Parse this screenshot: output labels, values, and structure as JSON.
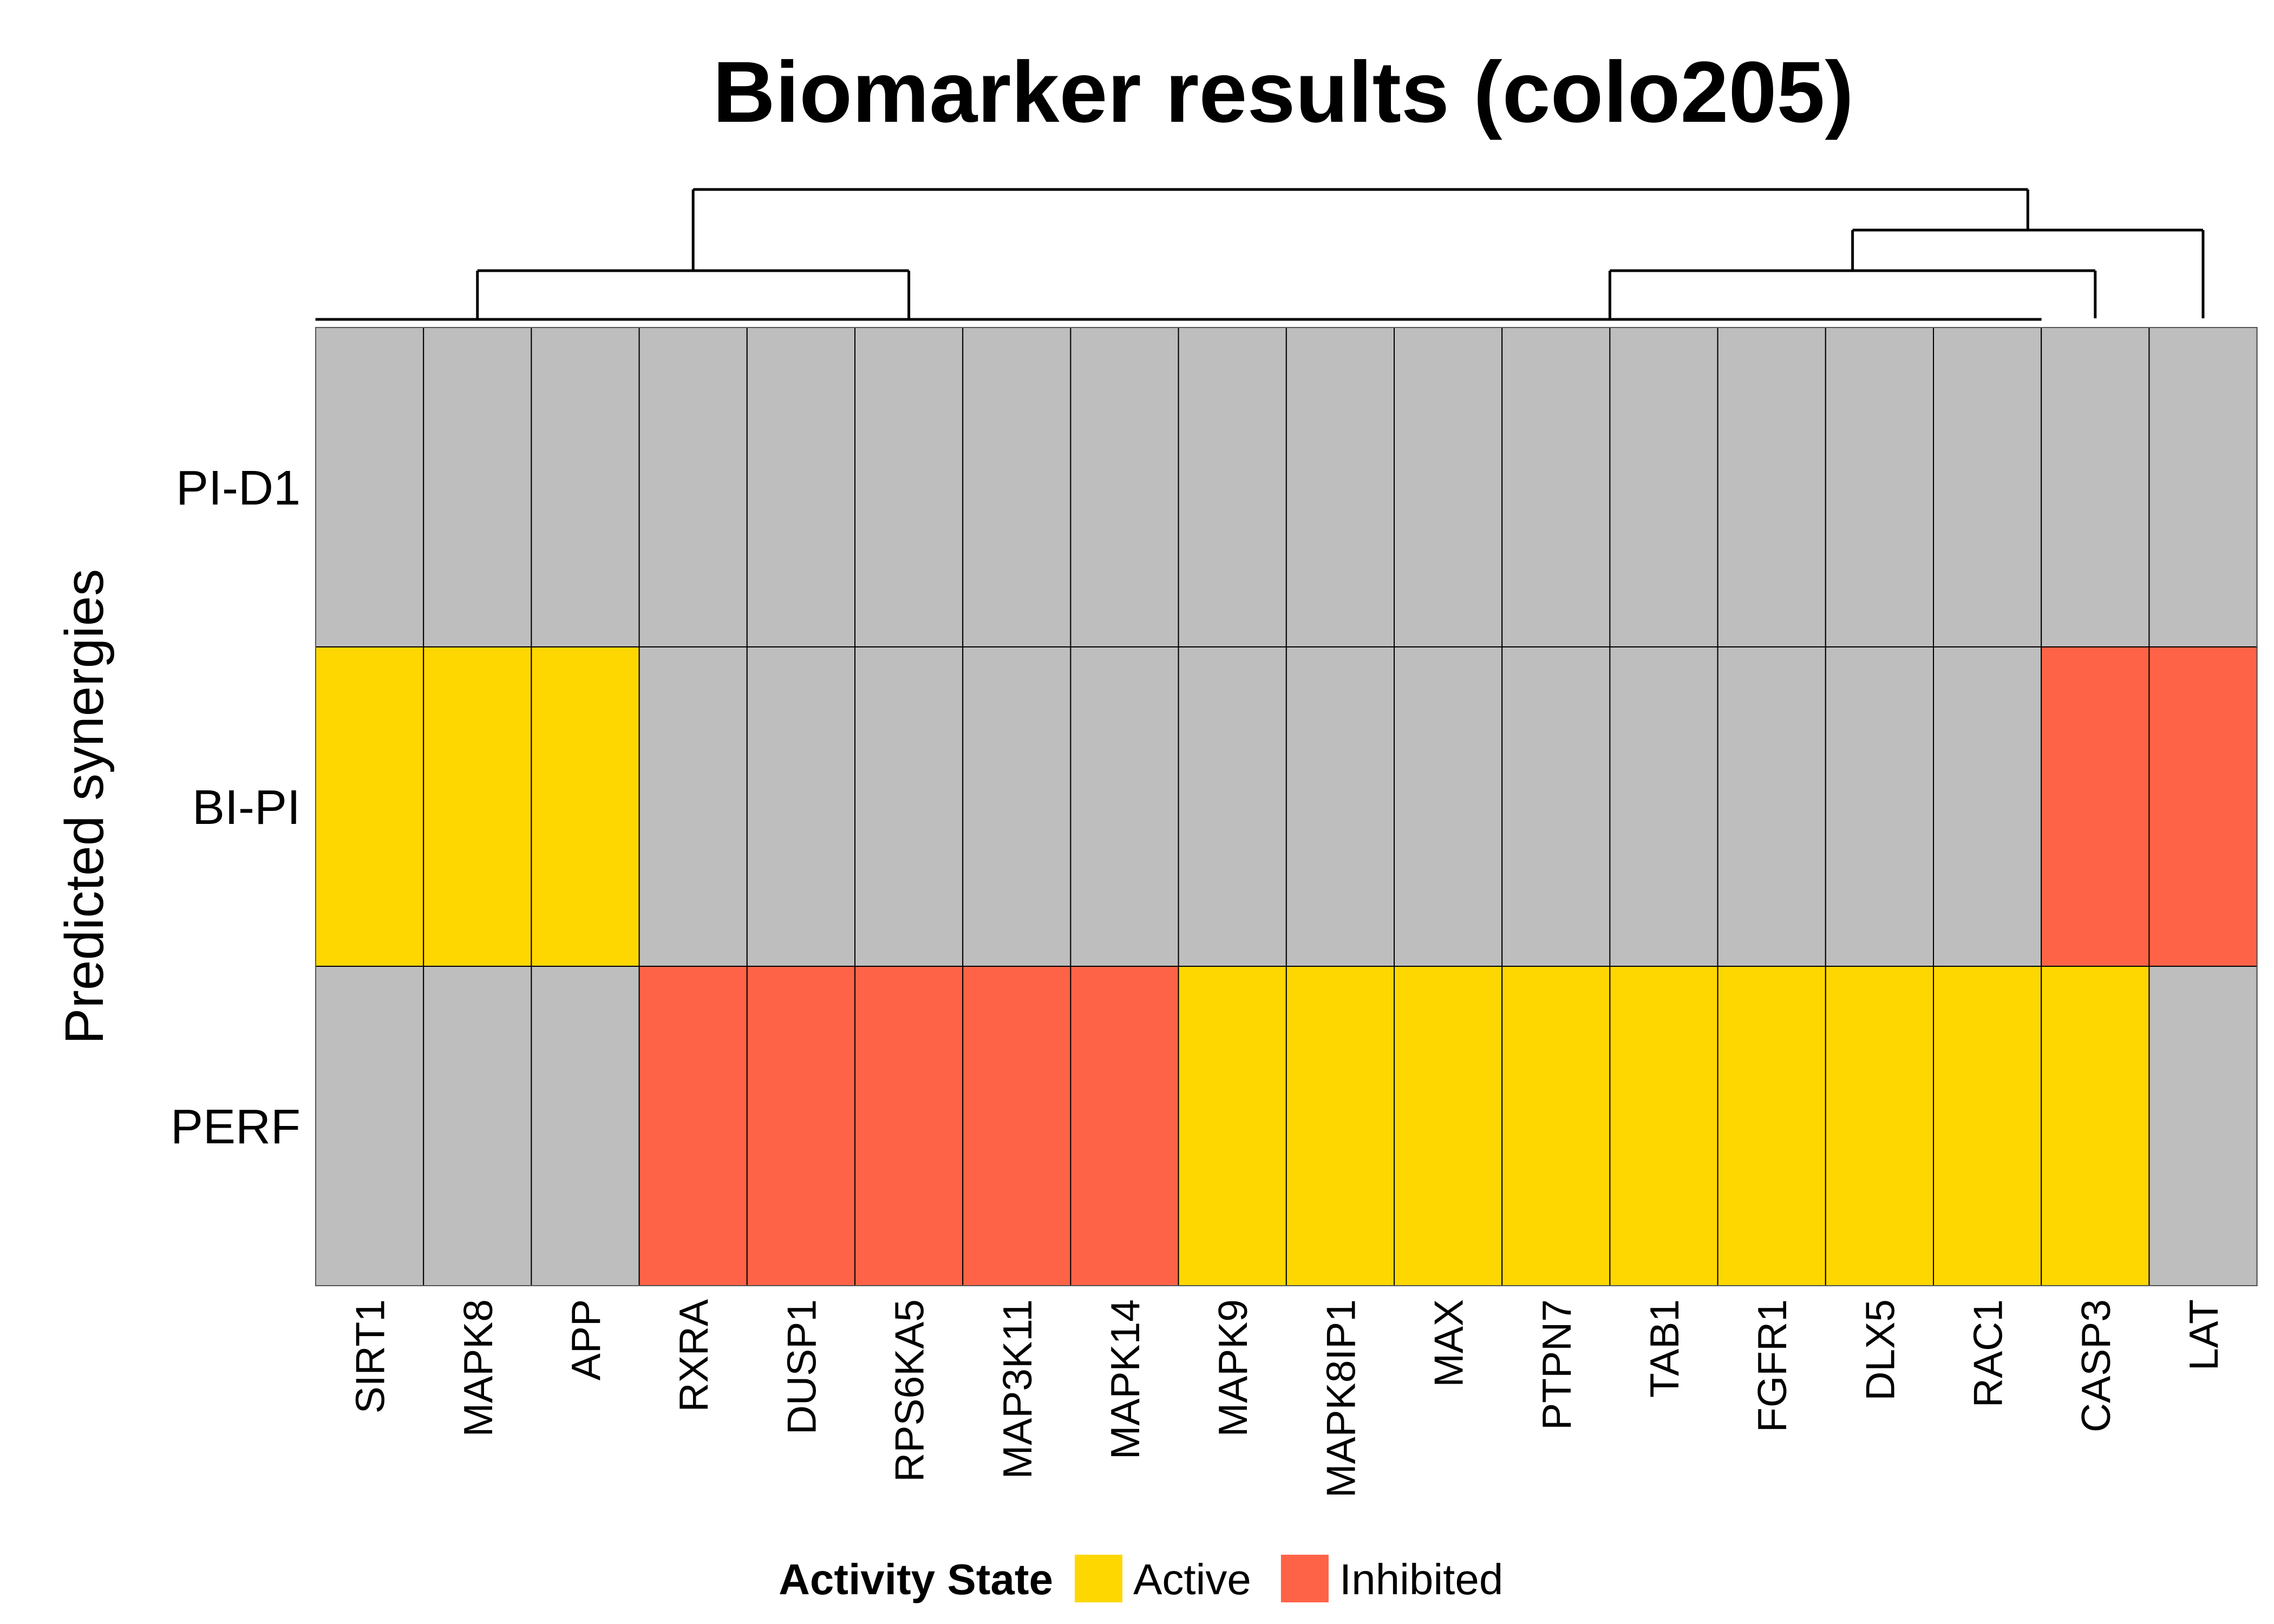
{
  "chart_data": {
    "type": "heatmap",
    "title": "Biomarker results (colo205)",
    "ylabel": "Predicted synergies",
    "rows": [
      "PI-D1",
      "BI-PI",
      "PERF"
    ],
    "columns": [
      "SIRT1",
      "MAPK8",
      "APP",
      "RXRA",
      "DUSP1",
      "RPS6KA5",
      "MAP3K11",
      "MAPK14",
      "MAPK9",
      "MAPK8IP1",
      "MAX",
      "PTPN7",
      "TAB1",
      "FGFR1",
      "DLX5",
      "RAC1",
      "CASP3",
      "LAT"
    ],
    "values": [
      [
        "none",
        "none",
        "none",
        "none",
        "none",
        "none",
        "none",
        "none",
        "none",
        "none",
        "none",
        "none",
        "none",
        "none",
        "none",
        "none",
        "none",
        "none"
      ],
      [
        "active",
        "active",
        "active",
        "none",
        "none",
        "none",
        "none",
        "none",
        "none",
        "none",
        "none",
        "none",
        "none",
        "none",
        "none",
        "none",
        "inhibited",
        "inhibited"
      ],
      [
        "none",
        "none",
        "none",
        "inhibited",
        "inhibited",
        "inhibited",
        "inhibited",
        "inhibited",
        "active",
        "active",
        "active",
        "active",
        "active",
        "active",
        "active",
        "active",
        "active",
        "none"
      ]
    ],
    "colors": {
      "active": "#FFD700",
      "inhibited": "#FF6347",
      "none": "#BEBEBE",
      "grid": "#000000"
    },
    "legend": {
      "title": "Activity State",
      "placement": "bottom",
      "entries": [
        {
          "key": "active",
          "label": "Active"
        },
        {
          "key": "inhibited",
          "label": "Inhibited"
        }
      ]
    },
    "column_dendrogram": {
      "merges": [
        {
          "members": [
            0,
            1,
            2
          ]
        },
        {
          "members": [
            3,
            4,
            5,
            6,
            7
          ]
        },
        {
          "members": [
            8,
            9,
            10,
            11,
            12,
            13,
            14,
            15
          ]
        },
        {
          "members": [
            8,
            9,
            10,
            11,
            12,
            13,
            14,
            15,
            16
          ]
        },
        {
          "members": [
            8,
            9,
            10,
            11,
            12,
            13,
            14,
            15,
            16,
            17
          ]
        },
        {
          "members": [
            0,
            1,
            2,
            3,
            4,
            5,
            6,
            7
          ]
        },
        {
          "members": [
            0,
            1,
            2,
            3,
            4,
            5,
            6,
            7,
            8,
            9,
            10,
            11,
            12,
            13,
            14,
            15,
            16,
            17
          ]
        }
      ]
    }
  }
}
